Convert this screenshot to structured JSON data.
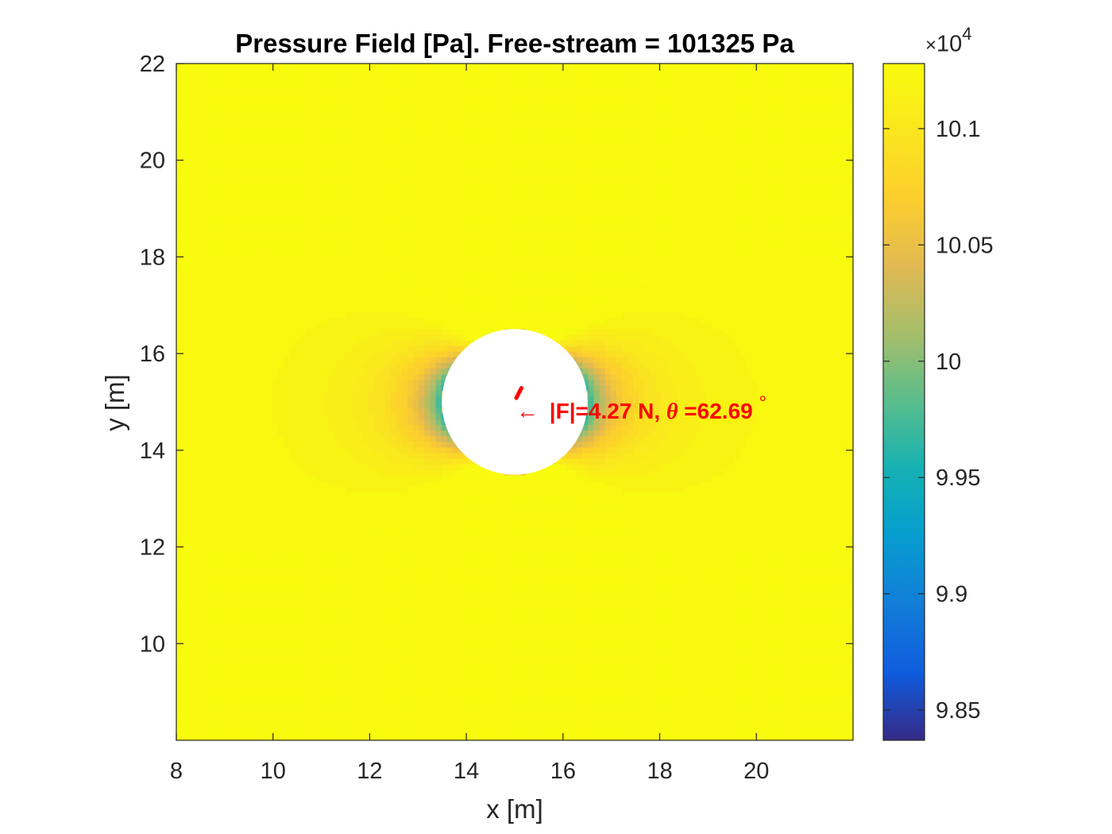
{
  "chart_data": {
    "type": "heatmap",
    "title": "Pressure Field [Pa]. Free-stream = 101325 Pa",
    "xlabel": "x [m]",
    "ylabel": "y [m]",
    "xlim": [
      8,
      22
    ],
    "ylim": [
      8,
      22
    ],
    "xticks": [
      8,
      10,
      12,
      14,
      16,
      18,
      20
    ],
    "yticks": [
      10,
      12,
      14,
      16,
      18,
      20,
      22
    ],
    "free_stream_pressure": 101325,
    "obstacle": {
      "shape": "circle",
      "center": [
        15,
        15
      ],
      "radius": 1.5
    },
    "colorbar": {
      "exponent_label": "10",
      "exponent_power": "4",
      "multiplier": "×",
      "clim": [
        9.837,
        10.128
      ],
      "ticks": [
        9.85,
        9.9,
        9.95,
        10,
        10.05,
        10.1
      ],
      "tick_labels": [
        "9.85",
        "9.9",
        "9.95",
        "10",
        "10.05",
        "10.1"
      ],
      "colormap": "parula"
    },
    "annotation": {
      "text": "← |F|=4.27 N, θ=62.69°",
      "arrow_glyph": "←",
      "force_label": "|F|=4.27 N, ",
      "theta_symbol": "θ",
      "angle_label": "=62.69",
      "degree_symbol": "°",
      "force_magnitude_N": 4.27,
      "force_angle_deg": 62.69,
      "color": "#ff0000"
    }
  }
}
